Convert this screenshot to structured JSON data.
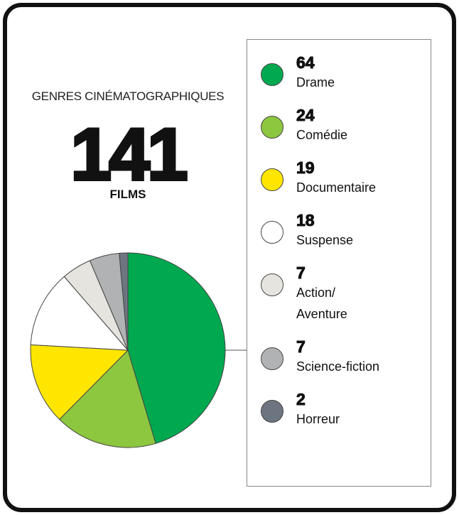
{
  "chart_data": {
    "type": "pie",
    "title": "GENRES CINÉMATOGRAPHIQUES",
    "total": 141,
    "total_unit": "FILMS",
    "categories": [
      "Drame",
      "Comédie",
      "Documentaire",
      "Suspense",
      "Action/\nAventure",
      "Science-fiction",
      "Horreur"
    ],
    "values": [
      64,
      24,
      19,
      18,
      7,
      7,
      2
    ],
    "colors": [
      "#00a84f",
      "#8dc63f",
      "#ffe600",
      "#ffffff",
      "#e6e4df",
      "#b0b2b3",
      "#6d7580"
    ]
  }
}
